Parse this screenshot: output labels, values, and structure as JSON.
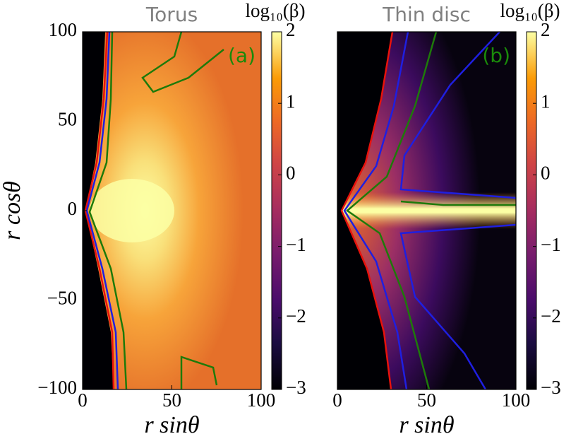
{
  "chart_data": [
    {
      "type": "heatmap",
      "title": "Torus",
      "xlabel": "r sinθ",
      "ylabel": "r cosθ",
      "annotation": "(a)",
      "xlim": [
        0,
        100
      ],
      "xticks": [
        0,
        50,
        100
      ],
      "ylim": [
        -100,
        100
      ],
      "yticks": [
        {
          "value": -100,
          "label": "−100"
        },
        {
          "value": -50,
          "label": "−50"
        },
        0,
        50,
        100
      ],
      "colorbar": {
        "label": "log₁₀(β)",
        "lim": [
          -3,
          2
        ],
        "ticks": [
          {
            "value": -3,
            "label": "−3"
          },
          {
            "value": -2,
            "label": "−2"
          },
          {
            "value": -1,
            "label": "−1"
          },
          0,
          1,
          2
        ]
      }
    },
    {
      "type": "heatmap",
      "title": "Thin disc",
      "xlabel": "r sinθ",
      "annotation": "(b)",
      "xlim": [
        0,
        100
      ],
      "xticks": [
        0,
        50,
        100
      ],
      "ylim": [
        -100,
        100
      ],
      "colorbar": {
        "label": "log₁₀(β)",
        "lim": [
          -3,
          2
        ],
        "ticks": [
          {
            "value": -3,
            "label": "−3"
          },
          {
            "value": -2,
            "label": "−2"
          },
          {
            "value": -1,
            "label": "−1"
          },
          0,
          1,
          2
        ]
      }
    }
  ]
}
